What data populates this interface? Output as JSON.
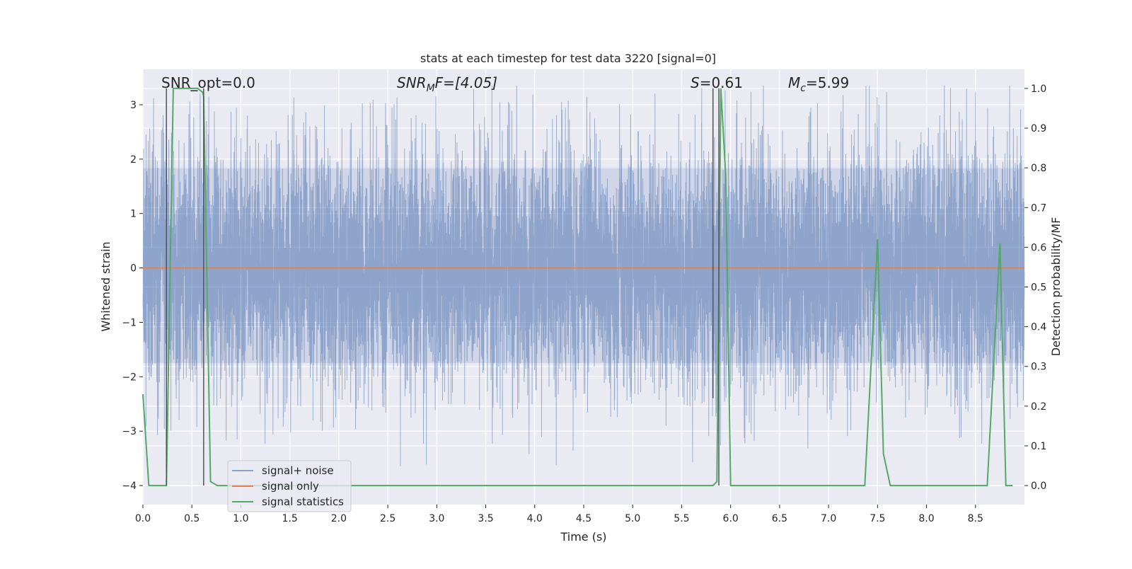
{
  "chart_data": {
    "type": "line",
    "title": "stats at each timestep for test data 3220 [signal=0]",
    "xlabel": "Time (s)",
    "ylabel": "Whitened strain",
    "y2label": "Detection probability/MF",
    "xlim": [
      0.0,
      9.0
    ],
    "ylim": [
      -4.35,
      3.65
    ],
    "y2lim": [
      -0.048,
      1.048
    ],
    "grid": true,
    "legend_position": "lower-left",
    "xticks": [
      0.0,
      0.5,
      1.0,
      1.5,
      2.0,
      2.5,
      3.0,
      3.5,
      4.0,
      4.5,
      5.0,
      5.5,
      6.0,
      6.5,
      7.0,
      7.5,
      8.0,
      8.5
    ],
    "xtick_labels": [
      "0.0",
      "0.5",
      "1.0",
      "1.5",
      "2.0",
      "2.5",
      "3.0",
      "3.5",
      "4.0",
      "4.5",
      "5.0",
      "5.5",
      "6.0",
      "6.5",
      "7.0",
      "7.5",
      "8.0",
      "8.5"
    ],
    "yticks": [
      3,
      2,
      1,
      0,
      -1,
      -2,
      -3,
      -4
    ],
    "ytick_labels": [
      "3",
      "2",
      "1",
      "0",
      "−1",
      "−2",
      "−3",
      "−4"
    ],
    "y2ticks": [
      1.0,
      0.9,
      0.8,
      0.7,
      0.6,
      0.5,
      0.4,
      0.3,
      0.2,
      0.1,
      0.0
    ],
    "y2tick_labels": [
      "1.0",
      "0.9",
      "0.8",
      "0.7",
      "0.6",
      "0.5",
      "0.4",
      "0.3",
      "0.2",
      "0.1",
      "0.0"
    ],
    "annotations": {
      "snr_opt": "SNR_opt=0.0",
      "snr_mf_symbol": "SNR",
      "snr_mf_sub": "M",
      "snr_mf_rest": "F=[4.05]",
      "s_symbol": "S",
      "s_rest": "=0.61",
      "mc_symbol": "M",
      "mc_sub": "c",
      "mc_rest": "=5.99"
    },
    "colors": {
      "background": "#eaeaf2",
      "grid": "#ffffff",
      "noise": "#4c72b0",
      "signal_only": "#dd8452",
      "statistics": "#55a868",
      "marker": "#555555"
    },
    "noise_trace": {
      "sample_step": 0.001,
      "seed": 3220,
      "band": [
        -1.75,
        1.85
      ],
      "max": 3.35,
      "min": -4.0
    },
    "series": [
      {
        "name": "signal+ noise",
        "style": "noise",
        "note": "whitened strain noise trace over 0-9 s"
      },
      {
        "name": "signal only",
        "style": "signal_only",
        "x": [
          0.0,
          9.0
        ],
        "y": [
          0.0,
          0.0
        ]
      },
      {
        "name": "signal statistics",
        "style": "statistics",
        "axis": "right",
        "x": [
          0.0,
          0.06,
          0.24,
          0.31,
          0.56,
          0.61,
          0.62,
          0.69,
          0.76,
          5.82,
          5.86,
          5.9,
          5.95,
          6.0,
          7.37,
          7.5,
          7.56,
          7.63,
          8.62,
          8.75,
          8.81,
          8.88
        ],
        "y": [
          0.23,
          0.0,
          0.0,
          1.0,
          1.0,
          0.99,
          0.98,
          0.01,
          0.0,
          0.0,
          0.01,
          1.0,
          0.78,
          0.0,
          0.0,
          0.62,
          0.08,
          0.0,
          0.0,
          0.61,
          0.0,
          0.0
        ]
      }
    ],
    "markers": {
      "tall": [
        0.24,
        0.62,
        5.88
      ],
      "short": [
        5.82
      ]
    },
    "legend": [
      "signal+ noise",
      "signal only",
      "signal statistics"
    ]
  }
}
